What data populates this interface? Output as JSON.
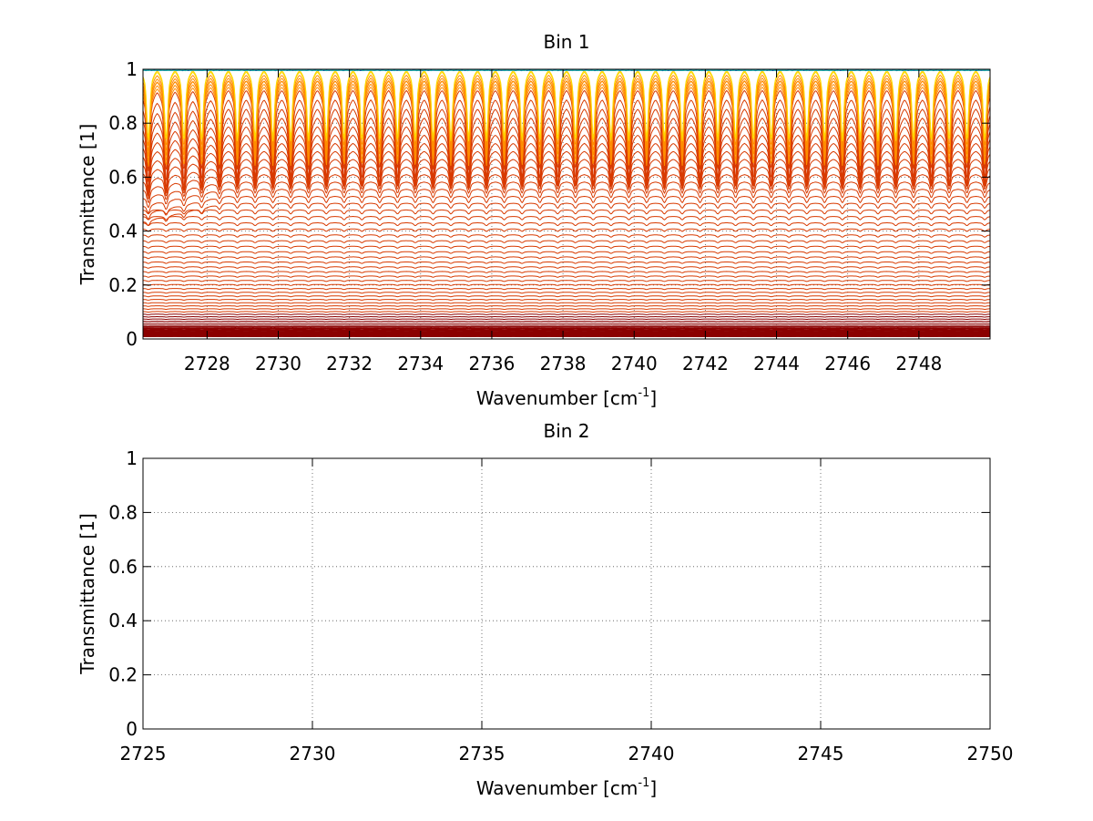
{
  "chart_data": [
    {
      "type": "line",
      "title": "Bin 1",
      "xlabel": "Wavenumber [cm",
      "xlabel_superscript": "-1",
      "xlabel_suffix": "]",
      "ylabel": "Transmittance [1]",
      "xlim": [
        2726.2,
        2750
      ],
      "ylim": [
        0,
        1
      ],
      "xticks": [
        2728,
        2730,
        2732,
        2734,
        2736,
        2738,
        2740,
        2742,
        2744,
        2746,
        2748
      ],
      "xtick_labels": [
        "2728",
        "2730",
        "2732",
        "2734",
        "2736",
        "2738",
        "2740",
        "2742",
        "2744",
        "2746",
        "2748"
      ],
      "yticks": [
        0,
        0.2,
        0.4,
        0.6,
        0.8,
        1
      ],
      "ytick_labels": [
        "0",
        "0.2",
        "0.4",
        "0.6",
        "0.8",
        "1"
      ],
      "grid": true,
      "series_description": "Family of about 60 transmittance spectra; each shows periodic absorption dips spaced ~0.5 cm-1, baselines ranging from ~0.01 (dark red) to ~1.0 (yellow/blue), dips deepest relative to baseline near transmittance 0.9",
      "series_count": 60,
      "line_spacing_cm1": 0.5,
      "baseline_range": [
        0.01,
        1.0
      ],
      "colors": {
        "dark": "#8b0000",
        "mid": "#d83a00",
        "orange": "#ff8c00",
        "yellow": "#ffd700",
        "blue": "#0033aa",
        "cyan": "#20b2aa"
      }
    },
    {
      "type": "line",
      "title": "Bin 2",
      "xlabel": "Wavenumber [cm",
      "xlabel_superscript": "-1",
      "xlabel_suffix": "]",
      "ylabel": "Transmittance [1]",
      "xlim": [
        2725,
        2750
      ],
      "ylim": [
        0,
        1
      ],
      "xticks": [
        2725,
        2730,
        2735,
        2740,
        2745,
        2750
      ],
      "xtick_labels": [
        "2725",
        "2730",
        "2735",
        "2740",
        "2745",
        "2750"
      ],
      "yticks": [
        0,
        0.2,
        0.4,
        0.6,
        0.8,
        1
      ],
      "ytick_labels": [
        "0",
        "0.2",
        "0.4",
        "0.6",
        "0.8",
        "1"
      ],
      "grid": true,
      "series": []
    }
  ]
}
